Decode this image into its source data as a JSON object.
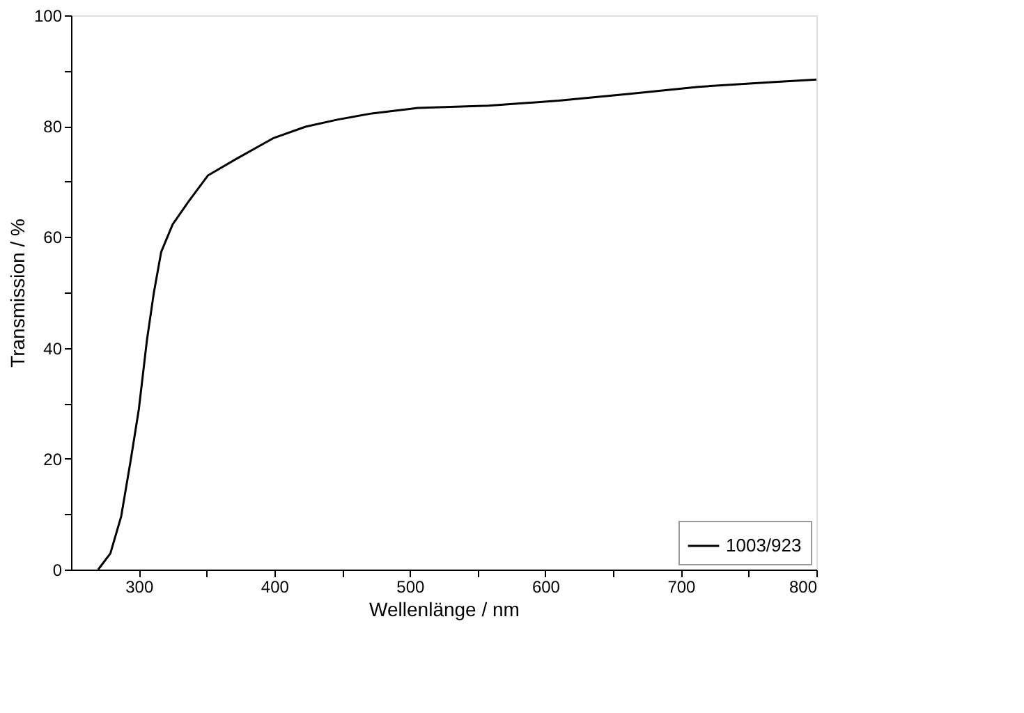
{
  "chart_data": {
    "type": "line",
    "xlabel": "Wellenlänge / nm",
    "ylabel": "Transmission / %",
    "xlim": [
      250,
      800
    ],
    "ylim": [
      0,
      100
    ],
    "xticks": [
      300,
      {
        "value": 350,
        "label": null
      },
      400,
      {
        "value": 450,
        "label": null
      },
      500,
      {
        "value": 550,
        "label": null
      },
      600,
      {
        "value": 650,
        "label": null
      },
      700,
      {
        "value": 750,
        "label": null
      },
      800
    ],
    "yticks": [
      0,
      {
        "value": 10,
        "label": null
      },
      20,
      {
        "value": 30,
        "label": null
      },
      40,
      {
        "value": 50,
        "label": null
      },
      60,
      {
        "value": 70,
        "label": null
      },
      80,
      {
        "value": 90,
        "label": null
      },
      100
    ],
    "grid": false,
    "legend": "bottom right",
    "line_style": "solid",
    "marker": "none",
    "series": [
      {
        "name": "1003/923",
        "color": "#000000",
        "x": [
          270,
          279,
          287,
          294,
          300,
          306,
          311,
          316.5,
          325,
          337,
          351,
          372,
          399,
          423,
          447,
          472,
          506,
          558,
          610,
          661,
          713,
          765,
          800
        ],
        "values": [
          0,
          2.9,
          9.6,
          19.7,
          28.9,
          41.4,
          49.8,
          57.3,
          62.3,
          66.5,
          71.1,
          74.1,
          77.8,
          79.9,
          81.2,
          82.3,
          83.3,
          83.7,
          84.6,
          85.8,
          87.1,
          87.9,
          88.4
        ]
      }
    ]
  }
}
